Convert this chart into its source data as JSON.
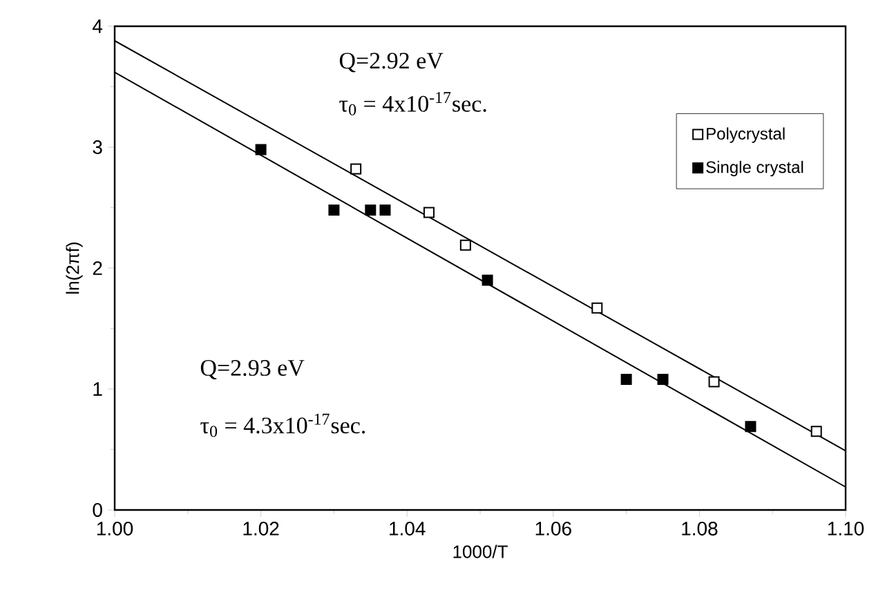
{
  "chart_data": {
    "type": "scatter",
    "xlabel": "1000/T",
    "ylabel": "ln(2πf)",
    "xlim": [
      1.0,
      1.1
    ],
    "ylim": [
      0,
      4
    ],
    "xticks": [
      {
        "value": 1.0,
        "label": "1.00"
      },
      {
        "value": 1.02,
        "label": "1.02"
      },
      {
        "value": 1.04,
        "label": "1.04"
      },
      {
        "value": 1.06,
        "label": "1.06"
      },
      {
        "value": 1.08,
        "label": "1.08"
      },
      {
        "value": 1.1,
        "label": "1.10"
      }
    ],
    "yticks": [
      0,
      1,
      2,
      3,
      4
    ],
    "legend": "top right",
    "grid": false,
    "annotations": [
      "Q=2.92 eV",
      "τ$_{0}$ = 4x10$^{-17}$sec.",
      "Q=2.93 eV",
      "τ$_{0}$ = 4.3x10$^{-17}$sec."
    ],
    "series": [
      {
        "name": "Polycrystal",
        "marker": "square",
        "color": "#000000",
        "x": [
          1.033,
          1.043,
          1.048,
          1.066,
          1.082,
          1.096
        ],
        "values": [
          2.82,
          2.46,
          2.19,
          1.67,
          1.06,
          0.65
        ]
      },
      {
        "name": "Single crystal",
        "marker": "square",
        "color": "#000000",
        "x": [
          1.02,
          1.03,
          1.035,
          1.037,
          1.051,
          1.07,
          1.075,
          1.087
        ],
        "values": [
          2.98,
          2.48,
          2.48,
          2.48,
          1.9,
          1.08,
          1.08,
          0.69
        ]
      },
      {
        "type": "line",
        "marker": "none",
        "color": "#000000",
        "x": [
          1.0,
          1.1
        ],
        "values": [
          3.88,
          0.49
        ]
      },
      {
        "type": "line",
        "marker": "none",
        "color": "#000000",
        "x": [
          1.0,
          1.1
        ],
        "values": [
          3.62,
          0.19
        ]
      }
    ]
  }
}
